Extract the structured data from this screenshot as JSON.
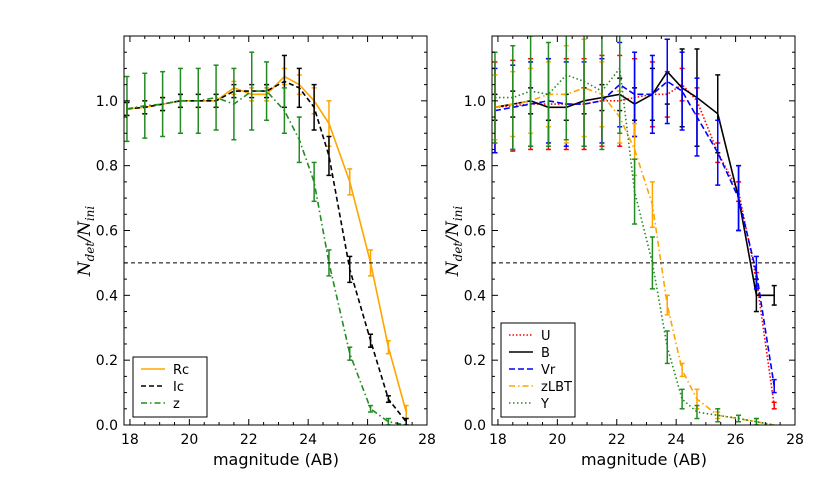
{
  "chart_data": [
    {
      "type": "line",
      "panel": "left",
      "xlabel": "magnitude (AB)",
      "ylabel": "N_det/N_ini",
      "ylabel_main": "N",
      "ylabel_num_sub": "det",
      "ylabel_den": "/N",
      "ylabel_den_sub": "ini",
      "xlim": [
        17.8,
        28
      ],
      "ylim": [
        0,
        1.2
      ],
      "xticks": [
        "18",
        "20",
        "22",
        "24",
        "26",
        "28"
      ],
      "xtick_values": [
        18,
        20,
        22,
        24,
        26,
        28
      ],
      "yticks": [
        "0.0",
        "0.2",
        "0.4",
        "0.6",
        "0.8",
        "1.0"
      ],
      "ytick_values": [
        0,
        0.2,
        0.4,
        0.6,
        0.8,
        1.0
      ],
      "hline": 0.5,
      "legend_position": "lower-left",
      "series": [
        {
          "name": "Rc",
          "color": "#FFA500",
          "dash": "",
          "x": [
            17.9,
            18.5,
            19.1,
            19.7,
            20.3,
            20.9,
            21.5,
            22.1,
            22.6,
            23.2,
            23.7,
            24.2,
            24.7,
            25.4,
            26.1,
            26.7,
            27.3
          ],
          "y": [
            0.975,
            0.98,
            0.99,
            1.0,
            1.0,
            1.0,
            1.04,
            1.02,
            1.02,
            1.075,
            1.05,
            1.0,
            0.93,
            0.75,
            0.5,
            0.24,
            0.04
          ],
          "err": [
            0.02,
            0.02,
            0.02,
            0.02,
            0.02,
            0.02,
            0.02,
            0.02,
            0.02,
            0.025,
            0.03,
            0.04,
            0.07,
            0.04,
            0.04,
            0.02,
            0.02
          ]
        },
        {
          "name": "Ic",
          "color": "#000000",
          "dash": "5,3",
          "x": [
            17.9,
            18.5,
            19.1,
            19.7,
            20.3,
            20.9,
            21.5,
            22.1,
            22.6,
            23.2,
            23.7,
            24.2,
            24.7,
            25.4,
            26.1,
            26.7,
            27.3
          ],
          "y": [
            0.975,
            0.98,
            0.99,
            1.0,
            1.0,
            1.0,
            1.03,
            1.03,
            1.03,
            1.06,
            1.04,
            0.98,
            0.83,
            0.48,
            0.26,
            0.08,
            0.01
          ],
          "err": [
            0.02,
            0.02,
            0.02,
            0.02,
            0.02,
            0.02,
            0.02,
            0.02,
            0.02,
            0.08,
            0.06,
            0.07,
            0.06,
            0.04,
            0.02,
            0.01,
            0.01
          ]
        },
        {
          "name": "z",
          "color": "#228B22",
          "dash": "6,3,1.5,3",
          "x": [
            17.9,
            18.5,
            19.1,
            19.7,
            20.3,
            20.9,
            21.5,
            22.1,
            22.6,
            23.2,
            23.7,
            24.2,
            24.7,
            25.4,
            26.1,
            26.7,
            27.3
          ],
          "y": [
            0.975,
            0.985,
            0.99,
            1.0,
            1.0,
            1.01,
            0.99,
            1.03,
            1.03,
            0.97,
            0.88,
            0.75,
            0.5,
            0.22,
            0.05,
            0.01,
            0.0
          ],
          "err": [
            0.1,
            0.1,
            0.1,
            0.1,
            0.1,
            0.1,
            0.11,
            0.12,
            0.09,
            0.07,
            0.07,
            0.06,
            0.04,
            0.02,
            0.01,
            0.01,
            0.0
          ]
        }
      ]
    },
    {
      "type": "line",
      "panel": "right",
      "xlabel": "magnitude (AB)",
      "ylabel": "N_det/N_ini",
      "ylabel_main": "N",
      "ylabel_num_sub": "det",
      "ylabel_den": "/N",
      "ylabel_den_sub": "ini",
      "xlim": [
        17.8,
        28
      ],
      "ylim": [
        0,
        1.2
      ],
      "xticks": [
        "18",
        "20",
        "22",
        "24",
        "26",
        "28"
      ],
      "xtick_values": [
        18,
        20,
        22,
        24,
        26,
        28
      ],
      "yticks": [
        "0.0",
        "0.2",
        "0.4",
        "0.6",
        "0.8",
        "1.0"
      ],
      "ytick_values": [
        0,
        0.2,
        0.4,
        0.6,
        0.8,
        1.0
      ],
      "hline": 0.5,
      "legend_position": "lower-left",
      "series": [
        {
          "name": "U",
          "color": "#FF0000",
          "dash": "1.5,2",
          "x": [
            17.9,
            18.5,
            19.1,
            19.7,
            20.3,
            20.9,
            21.5,
            22.1,
            22.6,
            23.2,
            23.7,
            24.2,
            24.7,
            25.4,
            26.1,
            26.7,
            27.3
          ],
          "y": [
            0.98,
            0.985,
            0.99,
            0.99,
            0.99,
            0.99,
            1.0,
            1.0,
            1.01,
            1.02,
            1.02,
            1.05,
            1.0,
            0.84,
            0.72,
            0.45,
            0.06
          ],
          "err": [
            0.14,
            0.14,
            0.14,
            0.14,
            0.14,
            0.14,
            0.14,
            0.14,
            0.12,
            0.1,
            0.07,
            0.05,
            0.04,
            0.03,
            0.03,
            0.02,
            0.01
          ]
        },
        {
          "name": "B",
          "color": "#000000",
          "dash": "",
          "x": [
            17.9,
            18.5,
            19.1,
            19.7,
            20.3,
            20.9,
            21.5,
            22.1,
            22.6,
            23.2,
            23.7,
            24.2,
            24.7,
            25.4,
            26.1,
            26.7,
            27.3
          ],
          "y": [
            0.98,
            0.99,
            1.0,
            0.98,
            0.98,
            1.0,
            1.01,
            1.02,
            0.99,
            1.02,
            1.09,
            1.04,
            1.01,
            0.96,
            0.7,
            0.4,
            0.4
          ],
          "err": [
            0.04,
            0.04,
            0.04,
            0.04,
            0.04,
            0.04,
            0.04,
            0.05,
            0.05,
            0.08,
            0.1,
            0.12,
            0.15,
            0.12,
            0.1,
            0.05,
            0.03
          ]
        },
        {
          "name": "Vr",
          "color": "#0000FF",
          "dash": "6,3",
          "x": [
            17.9,
            18.5,
            19.1,
            19.7,
            20.3,
            20.9,
            21.5,
            22.1,
            22.6,
            23.2,
            23.7,
            24.2,
            24.7,
            25.4,
            26.1,
            26.7,
            27.3
          ],
          "y": [
            0.97,
            0.98,
            0.99,
            1.0,
            0.99,
            0.99,
            1.0,
            1.05,
            1.02,
            1.02,
            1.06,
            1.03,
            0.95,
            0.84,
            0.7,
            0.47,
            0.12
          ],
          "err": [
            0.13,
            0.13,
            0.13,
            0.13,
            0.13,
            0.13,
            0.13,
            0.13,
            0.13,
            0.12,
            0.13,
            0.12,
            0.12,
            0.1,
            0.1,
            0.05,
            0.02
          ]
        },
        {
          "name": "zLBT",
          "color": "#FFA500",
          "dash": "6,3,1.5,3",
          "x": [
            17.9,
            18.5,
            19.1,
            19.7,
            20.3,
            20.9,
            21.5,
            22.1,
            22.6,
            23.2,
            23.7,
            24.2,
            24.7,
            25.4,
            26.1,
            26.7,
            27.3
          ],
          "y": [
            0.98,
            0.99,
            1.0,
            1.02,
            1.02,
            1.04,
            1.02,
            0.95,
            0.85,
            0.68,
            0.37,
            0.17,
            0.08,
            0.03,
            0.02,
            0.01,
            0.0
          ],
          "err": [
            0.1,
            0.1,
            0.1,
            0.1,
            0.15,
            0.15,
            0.1,
            0.08,
            0.08,
            0.07,
            0.03,
            0.02,
            0.03,
            0.01,
            0.01,
            0.01,
            0.0
          ]
        },
        {
          "name": "Y",
          "color": "#228B22",
          "dash": "1.5,2.5",
          "x": [
            17.9,
            18.5,
            19.1,
            19.7,
            20.3,
            20.9,
            21.5,
            22.1,
            22.6,
            23.2,
            23.7,
            24.2,
            24.7,
            25.4,
            26.1,
            26.7,
            27.3
          ],
          "y": [
            1.01,
            1.01,
            1.03,
            1.02,
            1.08,
            1.06,
            1.03,
            1.1,
            0.72,
            0.5,
            0.24,
            0.08,
            0.04,
            0.03,
            0.02,
            0.01,
            0.0
          ],
          "err": [
            0.14,
            0.16,
            0.17,
            0.16,
            0.2,
            0.2,
            0.18,
            0.2,
            0.1,
            0.08,
            0.05,
            0.03,
            0.02,
            0.02,
            0.01,
            0.01,
            0.0
          ]
        }
      ]
    }
  ]
}
